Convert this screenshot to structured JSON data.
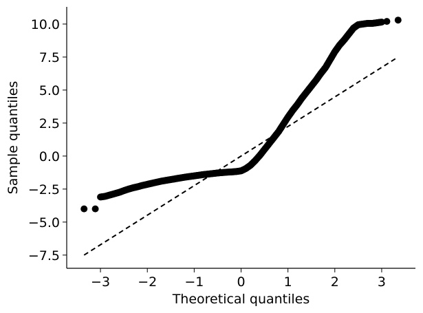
{
  "chart_data": {
    "type": "scatter",
    "title": "",
    "xlabel": "Theoretical quantiles",
    "ylabel": "Sample quantiles",
    "xlim": [
      -3.72,
      3.72
    ],
    "ylim": [
      -8.5,
      11.3
    ],
    "xticks": [
      -3,
      -2,
      -1,
      0,
      1,
      2,
      3
    ],
    "xtick_labels": [
      "−3",
      "−2",
      "−1",
      "0",
      "1",
      "2",
      "3"
    ],
    "yticks": [
      -7.5,
      -5.0,
      -2.5,
      0.0,
      2.5,
      5.0,
      7.5,
      10.0
    ],
    "ytick_labels": [
      "−7.5",
      "−5.0",
      "−2.5",
      "0.0",
      "2.5",
      "5.0",
      "7.5",
      "10.0"
    ],
    "grid": false,
    "legend": "none",
    "point_color": "#000000",
    "reference_line": {
      "style": "dashed",
      "color": "#000000",
      "x": [
        -3.35,
        3.35
      ],
      "y": [
        -7.5,
        7.5
      ]
    },
    "series": [
      {
        "x": [
          -3.35,
          -3.11,
          -3.0,
          -2.9,
          -2.8,
          -2.7,
          -2.6,
          -2.5,
          -2.4,
          -2.3,
          -2.2,
          -2.1,
          -2.0,
          -1.9,
          -1.8,
          -1.7,
          -1.6,
          -1.5,
          -1.4,
          -1.3,
          -1.2,
          -1.1,
          -1.0,
          -0.9,
          -0.8,
          -0.7,
          -0.6,
          -0.5,
          -0.4,
          -0.3,
          -0.2,
          -0.1,
          0.0,
          0.1,
          0.2,
          0.3,
          0.4,
          0.5,
          0.6,
          0.7,
          0.8,
          0.9,
          1.0,
          1.1,
          1.2,
          1.3,
          1.4,
          1.5,
          1.6,
          1.7,
          1.8,
          1.9,
          2.0,
          2.1,
          2.2,
          2.3,
          2.4,
          2.5,
          2.6,
          2.7,
          2.8,
          2.9,
          3.0,
          3.11,
          3.35
        ],
        "y": [
          -4.0,
          -4.0,
          -3.1,
          -3.05,
          -2.95,
          -2.85,
          -2.75,
          -2.62,
          -2.5,
          -2.4,
          -2.32,
          -2.22,
          -2.14,
          -2.06,
          -1.98,
          -1.9,
          -1.84,
          -1.78,
          -1.72,
          -1.66,
          -1.6,
          -1.55,
          -1.5,
          -1.45,
          -1.4,
          -1.36,
          -1.32,
          -1.28,
          -1.25,
          -1.22,
          -1.2,
          -1.17,
          -1.12,
          -0.95,
          -0.7,
          -0.35,
          0.05,
          0.5,
          0.95,
          1.4,
          1.85,
          2.4,
          2.95,
          3.45,
          3.9,
          4.4,
          4.85,
          5.3,
          5.75,
          6.25,
          6.7,
          7.3,
          7.9,
          8.4,
          8.8,
          9.25,
          9.7,
          9.95,
          10.0,
          10.05,
          10.05,
          10.1,
          10.15,
          10.2,
          10.3
        ]
      }
    ]
  }
}
